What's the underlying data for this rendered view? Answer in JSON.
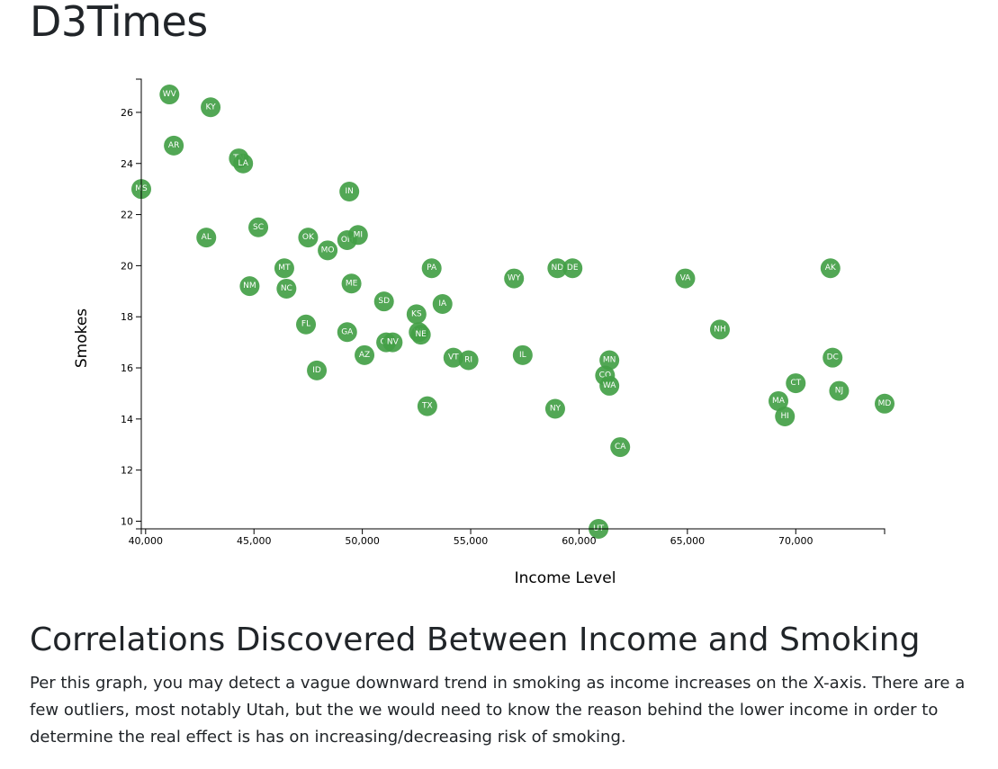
{
  "page": {
    "site_title": "D3Times",
    "section_heading": "Correlations Discovered Between Income and Smoking",
    "paragraph": "Per this graph, you may detect a vague downward trend in smoking as income increases on the X-axis. There are a few outliers, most notably Utah, but the we would need to know the reason behind the lower income in order to determine the real effect is has on increasing/decreasing risk of smoking."
  },
  "colors": {
    "point": "#43a047",
    "axis": "#000000",
    "text": "#212529"
  },
  "chart_data": {
    "type": "scatter",
    "xlabel": "Income Level",
    "ylabel": "Smokes",
    "xlim": [
      39800,
      74100
    ],
    "ylim": [
      9.7,
      27.3
    ],
    "x_ticks": [
      40000,
      45000,
      50000,
      55000,
      60000,
      65000,
      70000
    ],
    "x_tick_labels": [
      "40,000",
      "45,000",
      "50,000",
      "55,000",
      "60,000",
      "65,000",
      "70,000"
    ],
    "y_ticks": [
      10,
      12,
      14,
      16,
      18,
      20,
      22,
      24,
      26
    ],
    "y_tick_labels": [
      "10",
      "12",
      "14",
      "16",
      "18",
      "20",
      "22",
      "24",
      "26"
    ],
    "grid": false,
    "points": [
      {
        "label": "WV",
        "x": 41100,
        "y": 26.7
      },
      {
        "label": "KY",
        "x": 43000,
        "y": 26.2
      },
      {
        "label": "AR",
        "x": 41300,
        "y": 24.7
      },
      {
        "label": "TN",
        "x": 44300,
        "y": 24.2
      },
      {
        "label": "LA",
        "x": 44500,
        "y": 24.0
      },
      {
        "label": "MS",
        "x": 39800,
        "y": 23.0
      },
      {
        "label": "IN",
        "x": 49400,
        "y": 22.9
      },
      {
        "label": "AL",
        "x": 42800,
        "y": 21.1
      },
      {
        "label": "SC",
        "x": 45200,
        "y": 21.5
      },
      {
        "label": "OK",
        "x": 47500,
        "y": 21.1
      },
      {
        "label": "MO",
        "x": 48400,
        "y": 20.6
      },
      {
        "label": "OH",
        "x": 49300,
        "y": 21.0
      },
      {
        "label": "MI",
        "x": 49800,
        "y": 21.2
      },
      {
        "label": "MT",
        "x": 46400,
        "y": 19.9
      },
      {
        "label": "NM",
        "x": 44800,
        "y": 19.2
      },
      {
        "label": "NC",
        "x": 46500,
        "y": 19.1
      },
      {
        "label": "ME",
        "x": 49500,
        "y": 19.3
      },
      {
        "label": "PA",
        "x": 53200,
        "y": 19.9
      },
      {
        "label": "WY",
        "x": 57000,
        "y": 19.5
      },
      {
        "label": "ND",
        "x": 59000,
        "y": 19.9
      },
      {
        "label": "DE",
        "x": 59700,
        "y": 19.9
      },
      {
        "label": "VA",
        "x": 64900,
        "y": 19.5
      },
      {
        "label": "AK",
        "x": 71600,
        "y": 19.9
      },
      {
        "label": "SD",
        "x": 51000,
        "y": 18.6
      },
      {
        "label": "KS",
        "x": 52500,
        "y": 18.1
      },
      {
        "label": "IA",
        "x": 53700,
        "y": 18.5
      },
      {
        "label": "FL",
        "x": 47400,
        "y": 17.7
      },
      {
        "label": "GA",
        "x": 49300,
        "y": 17.4
      },
      {
        "label": "OR",
        "x": 51100,
        "y": 17.0
      },
      {
        "label": "NV",
        "x": 51400,
        "y": 17.0
      },
      {
        "label": "WI",
        "x": 52600,
        "y": 17.4
      },
      {
        "label": "NE",
        "x": 52700,
        "y": 17.3
      },
      {
        "label": "NH",
        "x": 66500,
        "y": 17.5
      },
      {
        "label": "AZ",
        "x": 50100,
        "y": 16.5
      },
      {
        "label": "VT",
        "x": 54200,
        "y": 16.4
      },
      {
        "label": "RI",
        "x": 54900,
        "y": 16.3
      },
      {
        "label": "IL",
        "x": 57400,
        "y": 16.5
      },
      {
        "label": "MN",
        "x": 61400,
        "y": 16.3
      },
      {
        "label": "DC",
        "x": 71700,
        "y": 16.4
      },
      {
        "label": "ID",
        "x": 47900,
        "y": 15.9
      },
      {
        "label": "CO",
        "x": 61200,
        "y": 15.7
      },
      {
        "label": "WA",
        "x": 61400,
        "y": 15.3
      },
      {
        "label": "CT",
        "x": 70000,
        "y": 15.4
      },
      {
        "label": "NJ",
        "x": 72000,
        "y": 15.1
      },
      {
        "label": "TX",
        "x": 53000,
        "y": 14.5
      },
      {
        "label": "NY",
        "x": 58900,
        "y": 14.4
      },
      {
        "label": "MA",
        "x": 69200,
        "y": 14.7
      },
      {
        "label": "MD",
        "x": 74100,
        "y": 14.6
      },
      {
        "label": "HI",
        "x": 69500,
        "y": 14.1
      },
      {
        "label": "CA",
        "x": 61900,
        "y": 12.9
      },
      {
        "label": "UT",
        "x": 60900,
        "y": 9.7
      }
    ]
  }
}
